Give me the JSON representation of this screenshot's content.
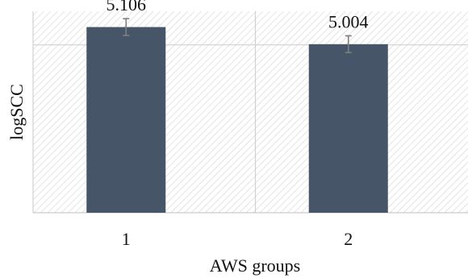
{
  "chart_data": {
    "type": "bar",
    "title": "",
    "xlabel": "AWS groups",
    "ylabel": "logSCC",
    "categories": [
      "1",
      "2"
    ],
    "values": [
      5.106,
      5.004
    ],
    "value_labels": [
      "5.106",
      "5.004"
    ],
    "error": [
      0.05,
      0.05
    ],
    "ylim": [
      4.0,
      5.2
    ],
    "grid": true,
    "legend": "none",
    "colors": {
      "bar": "#475569",
      "error_bar": "#7f7f7f",
      "grid": "#d0d0d0",
      "hatch": "#d9d9d9"
    }
  }
}
